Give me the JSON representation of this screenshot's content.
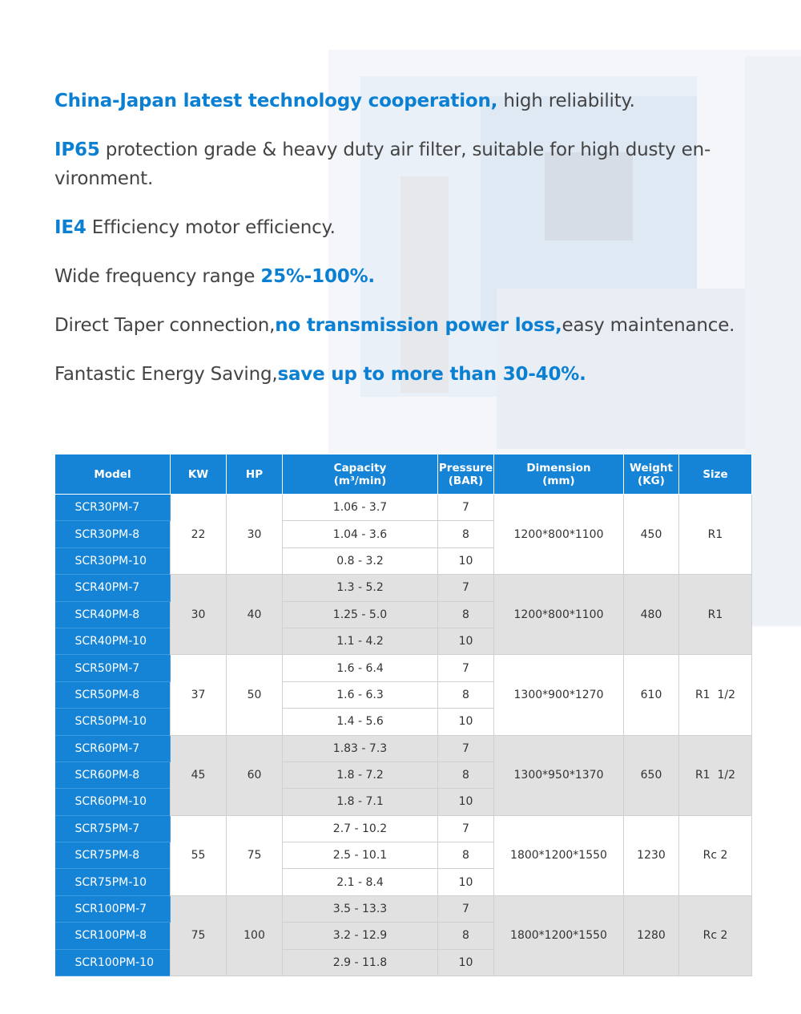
{
  "features": [
    [
      {
        "text": "China-Japan latest technology cooperation,",
        "em": true
      },
      {
        "text": " high reliability.",
        "em": false
      }
    ],
    [
      {
        "text": "IP65",
        "em": true
      },
      {
        "text": " protection grade & heavy duty air filter, suitable for high dusty en-vironment.",
        "em": false
      }
    ],
    [
      {
        "text": "IE4",
        "em": true
      },
      {
        "text": " Efficiency motor efficiency.",
        "em": false
      }
    ],
    [
      {
        "text": "Wide frequency range ",
        "em": false
      },
      {
        "text": "25%-100%.",
        "em": true
      }
    ],
    [
      {
        "text": "Direct Taper connection,",
        "em": false
      },
      {
        "text": "no transmission power loss,",
        "em": true
      },
      {
        "text": "easy maintenance.",
        "em": false
      }
    ],
    [
      {
        "text": "Fantastic Energy Saving,",
        "em": false
      },
      {
        "text": "save up to more than 30-40%.",
        "em": true
      }
    ]
  ],
  "table": {
    "header": [
      [
        "Model"
      ],
      [
        "KW"
      ],
      [
        "HP"
      ],
      [
        "Capacity",
        "(m³/min)"
      ],
      [
        "Pressure",
        "(BAR)"
      ],
      [
        "Dimension",
        "(mm)"
      ],
      [
        "Weight",
        "(KG)"
      ],
      [
        "Size"
      ]
    ],
    "groups": [
      {
        "kw": 22,
        "hp": 30,
        "dimension": "1200*800*1100",
        "weight": 450,
        "size": "R1",
        "rows": [
          {
            "model": "SCR30PM-7",
            "capacity": "1.06 - 3.7",
            "pressure": 7
          },
          {
            "model": "SCR30PM-8",
            "capacity": "1.04 - 3.6",
            "pressure": 8
          },
          {
            "model": "SCR30PM-10",
            "capacity": "0.8 - 3.2",
            "pressure": 10
          }
        ]
      },
      {
        "kw": 30,
        "hp": 40,
        "dimension": "1200*800*1100",
        "weight": 480,
        "size": "R1",
        "rows": [
          {
            "model": "SCR40PM-7",
            "capacity": "1.3 - 5.2",
            "pressure": 7
          },
          {
            "model": "SCR40PM-8",
            "capacity": "1.25 - 5.0",
            "pressure": 8
          },
          {
            "model": "SCR40PM-10",
            "capacity": "1.1 - 4.2",
            "pressure": 10
          }
        ]
      },
      {
        "kw": 37,
        "hp": 50,
        "dimension": "1300*900*1270",
        "weight": 610,
        "size": "R1  1/2",
        "rows": [
          {
            "model": "SCR50PM-7",
            "capacity": "1.6 - 6.4",
            "pressure": 7
          },
          {
            "model": "SCR50PM-8",
            "capacity": "1.6 - 6.3",
            "pressure": 8
          },
          {
            "model": "SCR50PM-10",
            "capacity": "1.4 - 5.6",
            "pressure": 10
          }
        ]
      },
      {
        "kw": 45,
        "hp": 60,
        "dimension": "1300*950*1370",
        "weight": 650,
        "size": "R1  1/2",
        "rows": [
          {
            "model": "SCR60PM-7",
            "capacity": "1.83 - 7.3",
            "pressure": 7
          },
          {
            "model": "SCR60PM-8",
            "capacity": "1.8 - 7.2",
            "pressure": 8
          },
          {
            "model": "SCR60PM-10",
            "capacity": "1.8 - 7.1",
            "pressure": 10
          }
        ]
      },
      {
        "kw": 55,
        "hp": 75,
        "dimension": "1800*1200*1550",
        "weight": 1230,
        "size": "Rc 2",
        "rows": [
          {
            "model": "SCR75PM-7",
            "capacity": "2.7 - 10.2",
            "pressure": 7
          },
          {
            "model": "SCR75PM-8",
            "capacity": "2.5 - 10.1",
            "pressure": 8
          },
          {
            "model": "SCR75PM-10",
            "capacity": "2.1 - 8.4",
            "pressure": 10
          }
        ]
      },
      {
        "kw": 75,
        "hp": 100,
        "dimension": "1800*1200*1550",
        "weight": 1280,
        "size": "Rc 2",
        "rows": [
          {
            "model": "SCR100PM-7",
            "capacity": "3.5 - 13.3",
            "pressure": 7
          },
          {
            "model": "SCR100PM-8",
            "capacity": "3.2 - 12.9",
            "pressure": 8
          },
          {
            "model": "SCR100PM-10",
            "capacity": "2.9 - 11.8",
            "pressure": 10
          }
        ]
      }
    ]
  }
}
